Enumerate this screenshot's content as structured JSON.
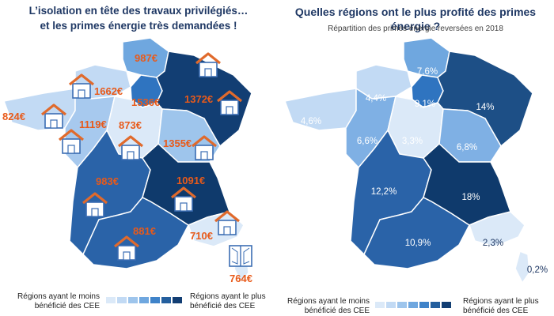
{
  "left_map": {
    "title_line1": "L’isolation en tête des travaux privilégiés…",
    "title_line2": "et les primes énergie très demandées !",
    "regions": {
      "hauts_de_france": "987€",
      "normandie": "1662€",
      "ile_de_france": "1536€",
      "grand_est": "1372€",
      "bretagne": "824€",
      "pays_de_la_loire": "1119€",
      "centre_val_de_loire": "873€",
      "bourgogne_franche_comte": "1355€",
      "nouvelle_aquitaine": "983€",
      "auvergne_rhone_alpes": "1091€",
      "occitanie": "881€",
      "paca": "710€",
      "corse": "764€"
    },
    "icons": [
      "house-insulation-icon",
      "window-icon"
    ],
    "legend": {
      "low": "Régions ayant le moins bénéficié des CEE",
      "high": "Régions ayant le plus bénéficié des CEE"
    }
  },
  "right_map": {
    "title": "Quelles régions ont le plus profité des primes énergie ?",
    "subtitle": "Répartition des primes énergie reversées en 2018",
    "regions": {
      "hauts_de_france": "7,6%",
      "normandie": "4,4%",
      "ile_de_france": "9,1%",
      "grand_est": "14%",
      "bretagne": "4,6%",
      "pays_de_la_loire": "6,6%",
      "centre_val_de_loire": "3,3%",
      "bourgogne_franche_comte": "6,8%",
      "nouvelle_aquitaine": "12,2%",
      "auvergne_rhone_alpes": "18%",
      "occitanie": "10,9%",
      "paca": "2,3%",
      "corse": "0,2%"
    },
    "legend": {
      "low": "Régions ayant le moins bénéficié des CEE",
      "high": "Régions ayant le plus bénéficié des CEE"
    }
  },
  "colors": {
    "title": "#1f3864",
    "value_label_left": "#e85a1a",
    "value_label_right": "#ffffff",
    "scale": [
      "#dbe9f8",
      "#c2daf4",
      "#9ec5ec",
      "#6fa7df",
      "#3f83c9",
      "#245f9e",
      "#123e73"
    ]
  }
}
